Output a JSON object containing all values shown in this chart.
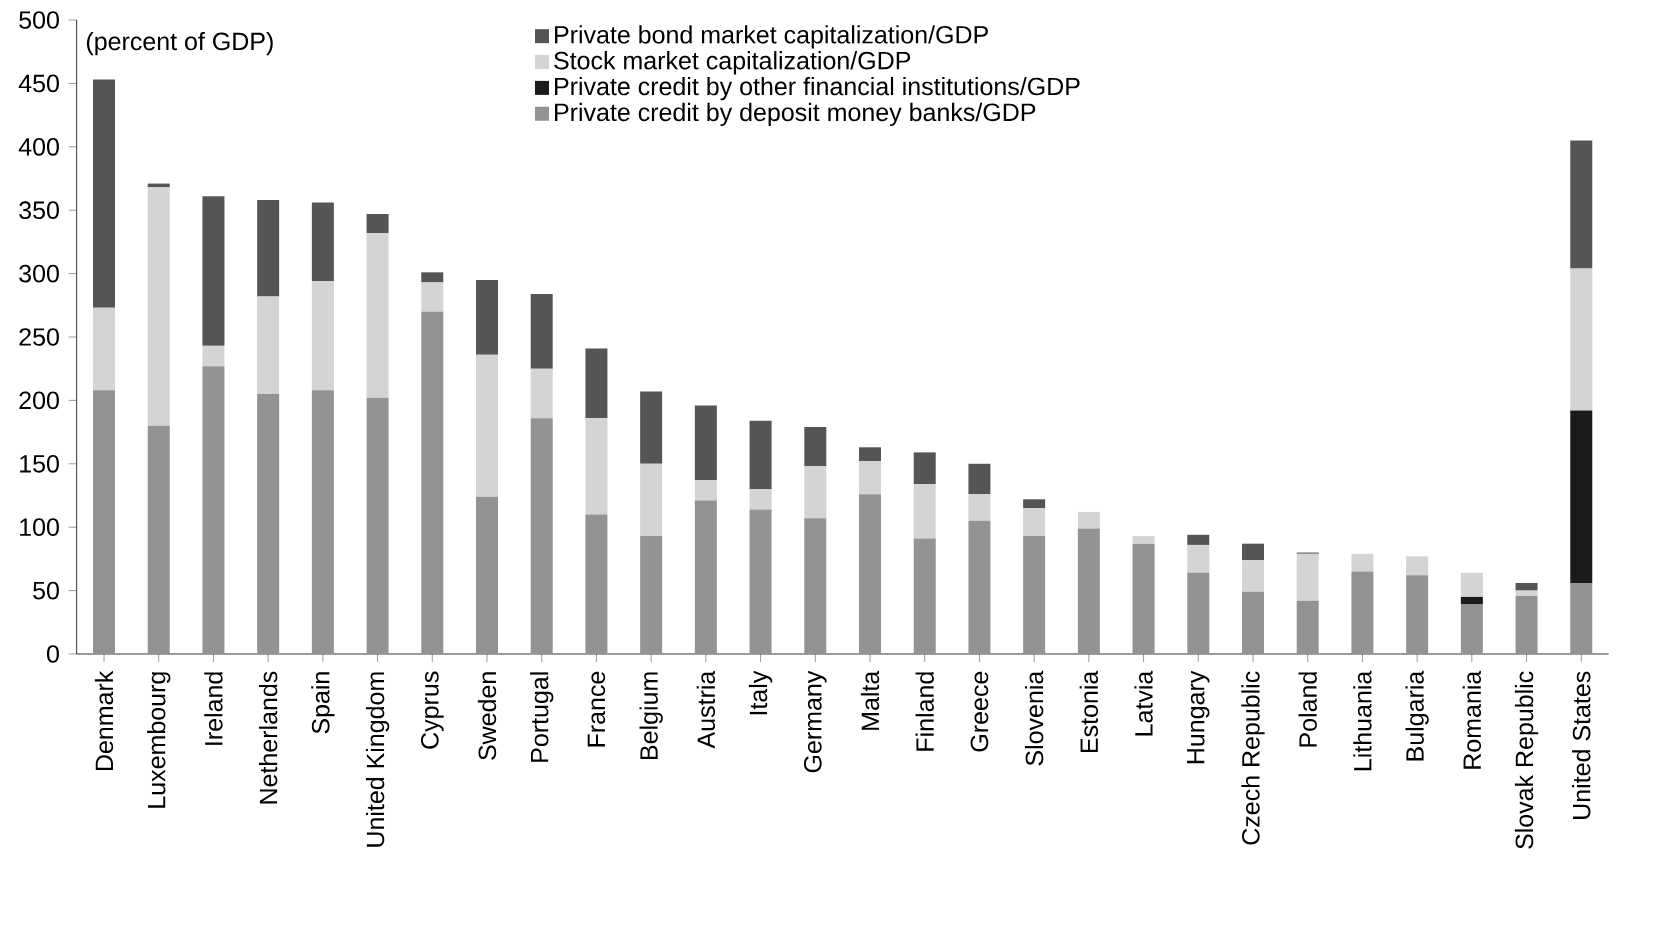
{
  "chart_data": {
    "type": "bar",
    "stacked": true,
    "annotations": [
      "(percent of GDP)"
    ],
    "categories": [
      "Denmark",
      "Luxembourg",
      "Ireland",
      "Netherlands",
      "Spain",
      "United Kingdom",
      "Cyprus",
      "Sweden",
      "Portugal",
      "France",
      "Belgium",
      "Austria",
      "Italy",
      "Germany",
      "Malta",
      "Finland",
      "Greece",
      "Slovenia",
      "Estonia",
      "Latvia",
      "Hungary",
      "Czech Republic",
      "Poland",
      "Lithuania",
      "Bulgaria",
      "Romania",
      "Slovak Republic",
      "United States"
    ],
    "series": [
      {
        "name": "Private credit by deposit money banks/GDP",
        "color": "#939393",
        "values": [
          208,
          180,
          227,
          205,
          208,
          202,
          270,
          124,
          186,
          110,
          93,
          121,
          114,
          107,
          126,
          91,
          105,
          93,
          99,
          87,
          64,
          49,
          42,
          65,
          62,
          39,
          46,
          56
        ]
      },
      {
        "name": "Private credit by other financial institutions/GDP",
        "color": "#1a1a1a",
        "values": [
          0,
          0,
          0,
          0,
          0,
          0,
          0,
          0,
          0,
          0,
          0,
          0,
          0,
          0,
          0,
          0,
          0,
          0,
          0,
          0,
          0,
          0,
          0,
          0,
          0,
          6,
          0,
          136
        ]
      },
      {
        "name": "Stock market capitalization/GDP",
        "color": "#d4d4d4",
        "values": [
          65,
          188,
          16,
          77,
          86,
          130,
          23,
          112,
          39,
          76,
          57,
          16,
          16,
          41,
          26,
          43,
          21,
          22,
          13,
          6,
          22,
          25,
          37,
          14,
          15,
          19,
          4,
          112
        ]
      },
      {
        "name": "Private bond market capitalization/GDP",
        "color": "#555555",
        "values": [
          180,
          3,
          118,
          76,
          62,
          15,
          8,
          59,
          59,
          55,
          57,
          59,
          54,
          31,
          11,
          25,
          24,
          7,
          0,
          0,
          8,
          13,
          1,
          0,
          0,
          0,
          6,
          101
        ]
      }
    ],
    "ylim": [
      0,
      500
    ],
    "yticks": [
      0,
      50,
      100,
      150,
      200,
      250,
      300,
      350,
      400,
      450,
      500
    ],
    "legend": "top",
    "grid": false
  }
}
